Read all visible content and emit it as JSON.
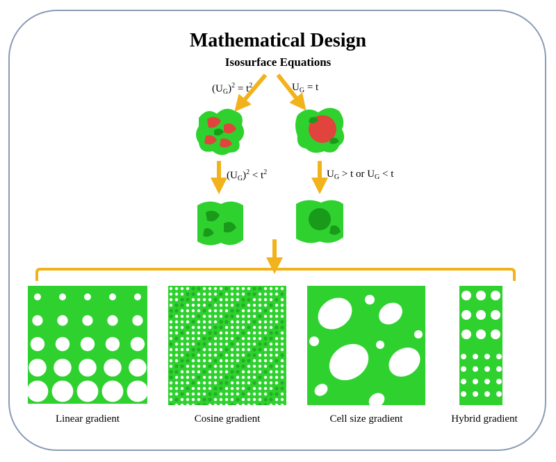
{
  "header": {
    "title": "Mathematical Design",
    "subtitle": "Isosurface Equations"
  },
  "branches": {
    "left_top": {
      "base": "(U",
      "sub": "G",
      "mid": ")",
      "sup": "2",
      "rest": " = t",
      "sup2": "2"
    },
    "right_top": {
      "base": "U",
      "sub": "G",
      "rest": " = t"
    },
    "left_mid": {
      "base": "(U",
      "sub": "G",
      "mid": ")",
      "sup": "2",
      "rest": " < t",
      "sup2": "2"
    },
    "right_mid": {
      "base": "U",
      "sub": "G",
      "rest": " > t or U",
      "sub2": "G",
      "rest2": " < t"
    }
  },
  "gradients": [
    {
      "label": "Linear gradient"
    },
    {
      "label": "Cosine gradient"
    },
    {
      "label": "Cell size gradient"
    },
    {
      "label": "Hybrid gradient"
    }
  ],
  "colors": {
    "frame": "#8a9bb5",
    "arrow": "#f2b21b",
    "green": "#2fd12f",
    "dark_green": "#1a9a1a",
    "red": "#e0443c"
  }
}
